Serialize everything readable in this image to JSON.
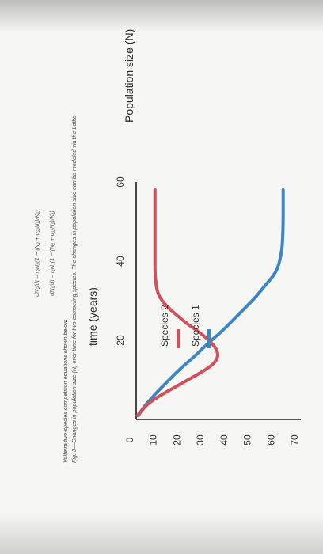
{
  "chart_data": {
    "type": "line",
    "title": "",
    "xlabel": "time (years)",
    "ylabel": "Population size (N)",
    "xlim": [
      0,
      60
    ],
    "ylim": [
      0,
      70
    ],
    "x_ticks": [
      "0",
      "20",
      "40",
      "60"
    ],
    "y_ticks": [
      "0",
      "10",
      "20",
      "30",
      "40",
      "50",
      "60",
      "70"
    ],
    "grid": false,
    "legend_position": "right",
    "series": [
      {
        "name": "Species 1",
        "color": "#3b86c6",
        "x": [
          1,
          3,
          5,
          7,
          10,
          13,
          16,
          19,
          22,
          25,
          28,
          31,
          34,
          36,
          38,
          40,
          43,
          46,
          50,
          54,
          58
        ],
        "y": [
          1,
          3,
          6,
          9,
          14,
          19,
          25,
          30,
          36,
          41,
          46,
          51,
          55,
          58,
          60,
          61,
          62,
          62.3,
          62.5,
          62.5,
          62.5
        ]
      },
      {
        "name": "Species 2",
        "color": "#d1505a",
        "x": [
          1,
          2,
          4,
          6,
          8,
          10,
          12,
          14,
          16,
          18,
          20,
          22,
          24,
          26,
          28,
          30,
          32,
          36,
          40,
          46,
          52,
          58
        ],
        "y": [
          0.5,
          2,
          5,
          10,
          16,
          22,
          28,
          33,
          35,
          34,
          31,
          27,
          22,
          18,
          14,
          11,
          9,
          8,
          8,
          8,
          8,
          8
        ]
      }
    ]
  },
  "caption": {
    "line1": "Fig. 3—Changes in population size (N) over time for two competing species. The changes in population size can be modeled via the Lotka-",
    "line2": "Volterra two-species competition equations shown below."
  },
  "equations": {
    "eq1": "dN₁/dt = r₁N₁(1 − (N₁ + α₁₂N₂)/K₁)",
    "eq2": "dN₂/dt = r₂N₂(1 − (N₂ + α₂₁N₁)/K₂)"
  }
}
